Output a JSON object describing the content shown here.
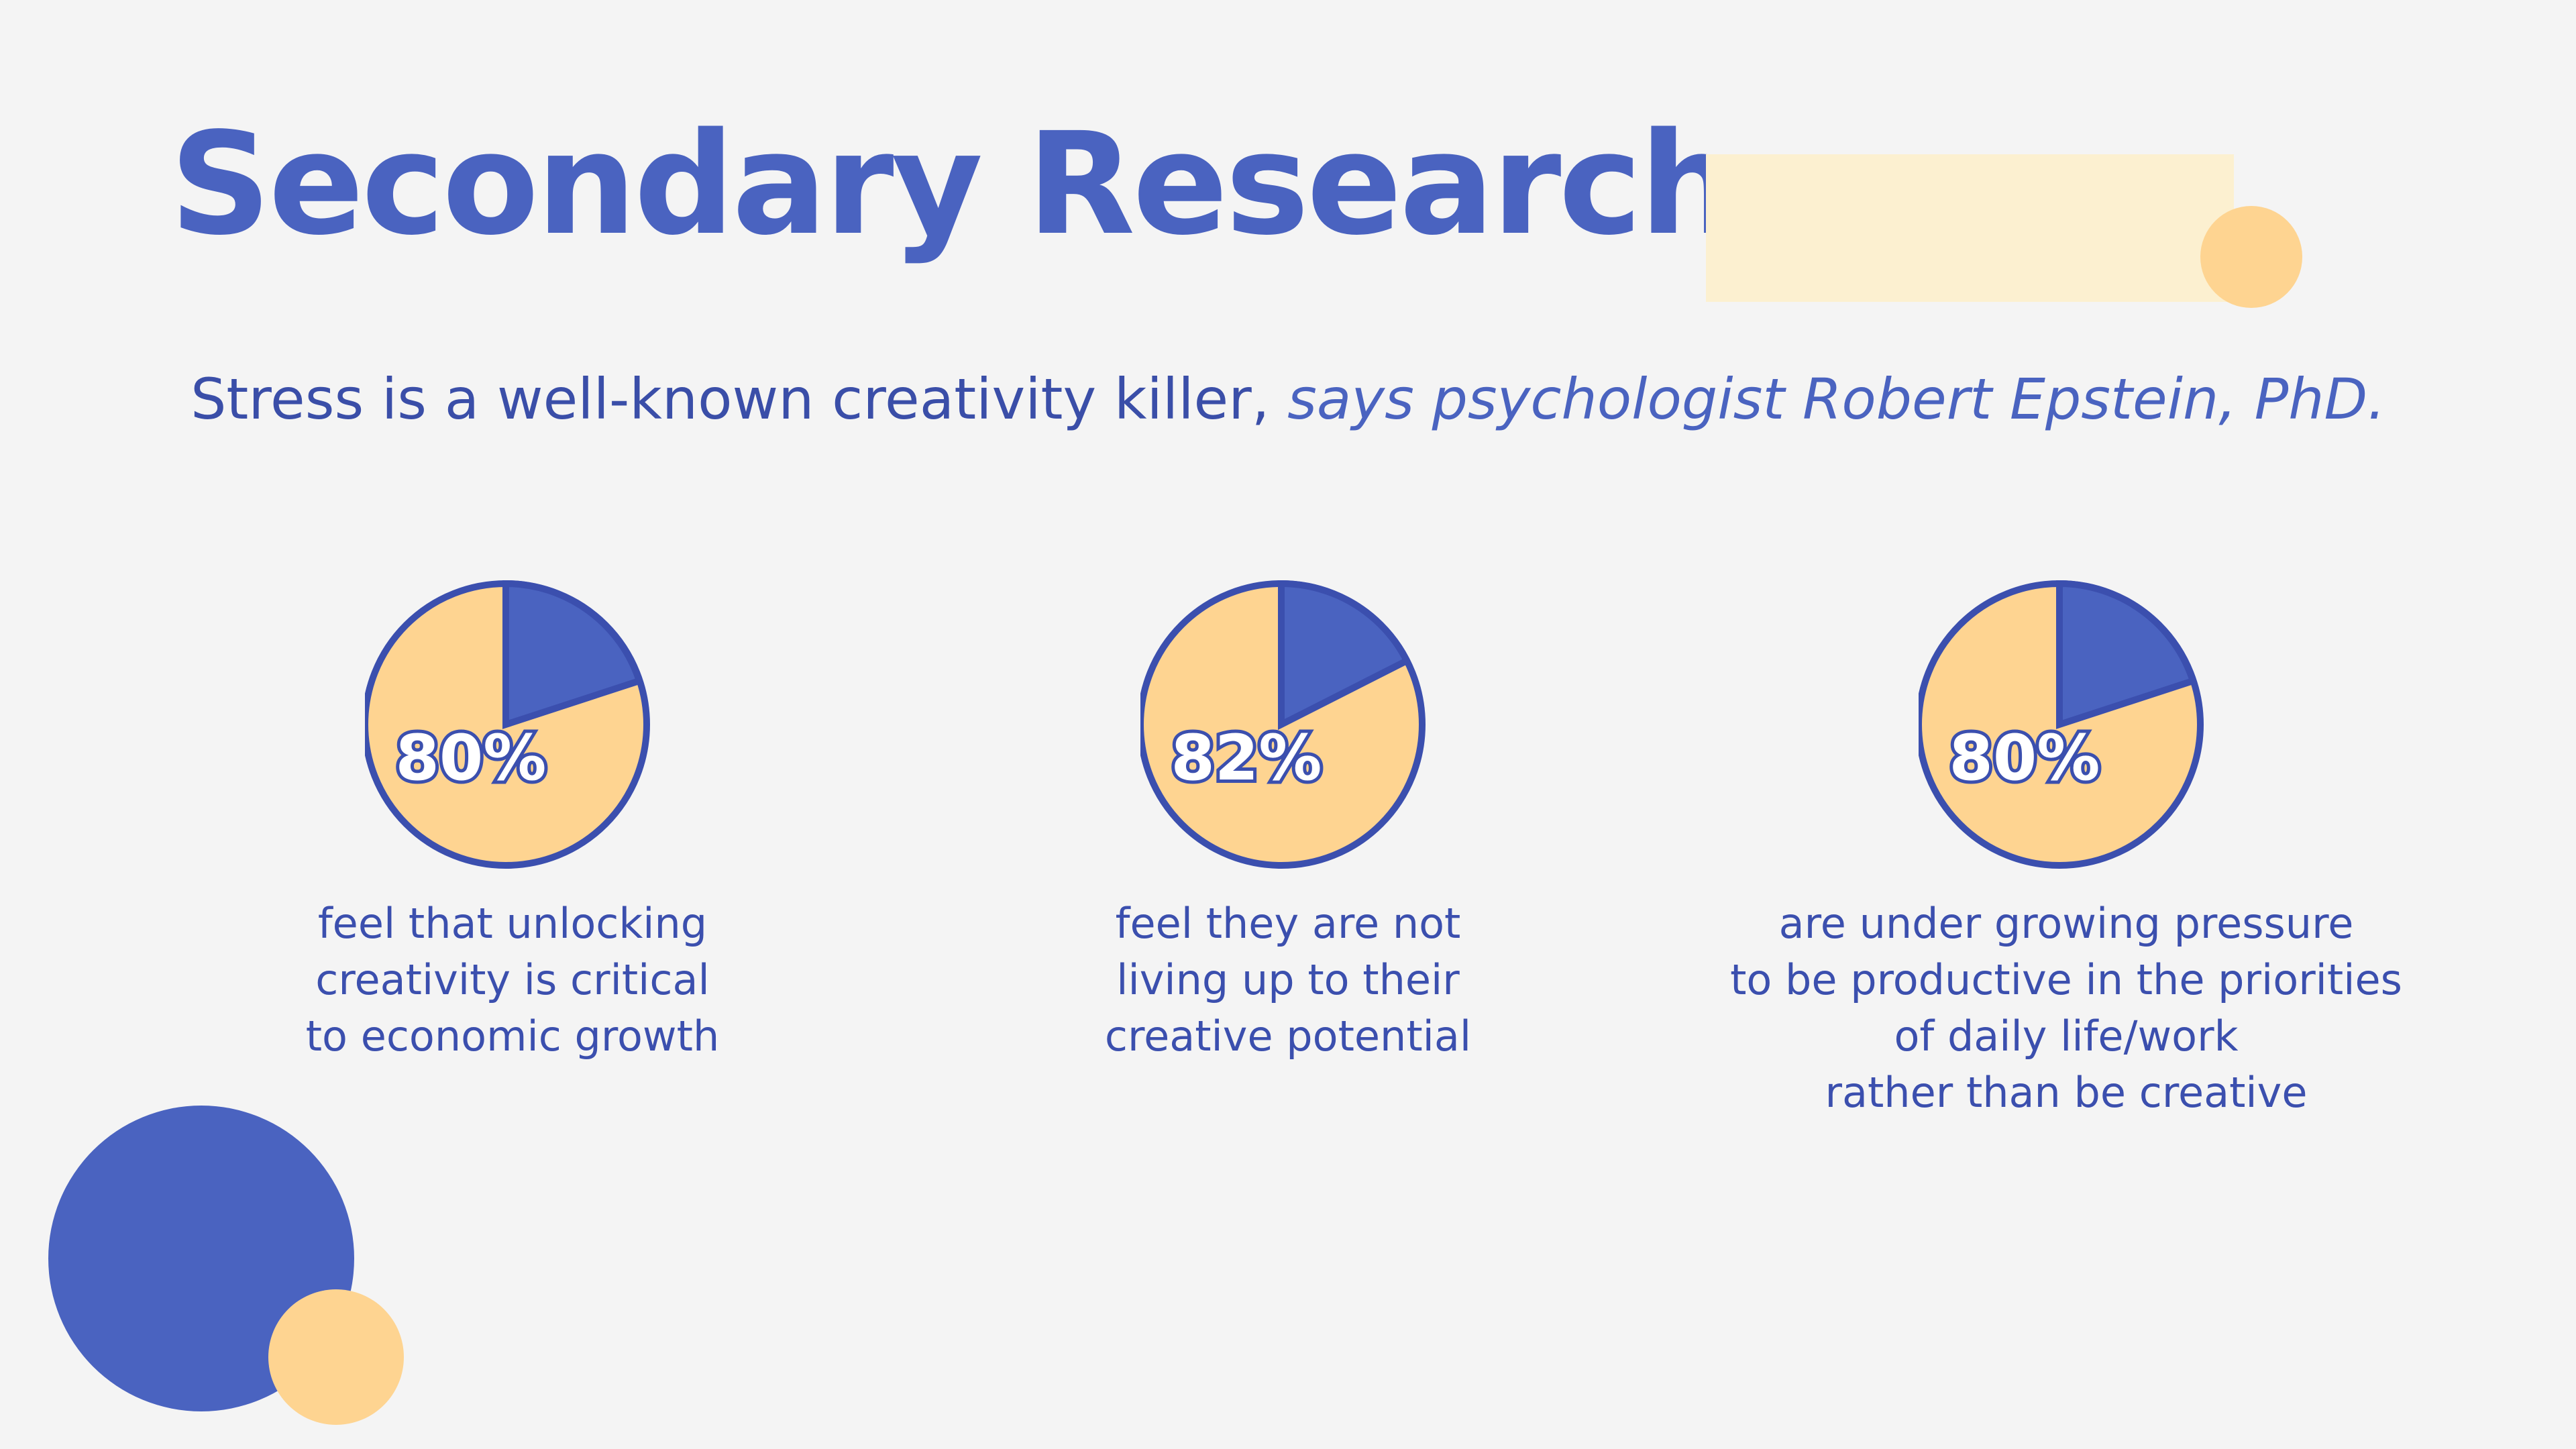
{
  "title": "Secondary Research",
  "quote": {
    "lead": "Stress is a well-known creativity killer,",
    "attribution": "says psychologist Robert Epstein, PhD."
  },
  "colors": {
    "primary": "#4a63c0",
    "accent": "#fed491",
    "pale": "#fcf0d0",
    "background": "#f4f4f4",
    "text": "#3b4fae"
  },
  "stats": [
    {
      "value_label": "80%",
      "value": 80,
      "caption": [
        "feel that unlocking",
        "creativity is critical",
        "to economic growth"
      ]
    },
    {
      "value_label": "82%",
      "value": 82,
      "caption": [
        "feel they are not",
        "living up to their",
        "creative potential"
      ]
    },
    {
      "value_label": "80%",
      "value": 80,
      "caption": [
        "are under growing pressure",
        "to be productive in the priorities",
        "of daily life/work",
        "rather than be creative"
      ]
    }
  ]
}
